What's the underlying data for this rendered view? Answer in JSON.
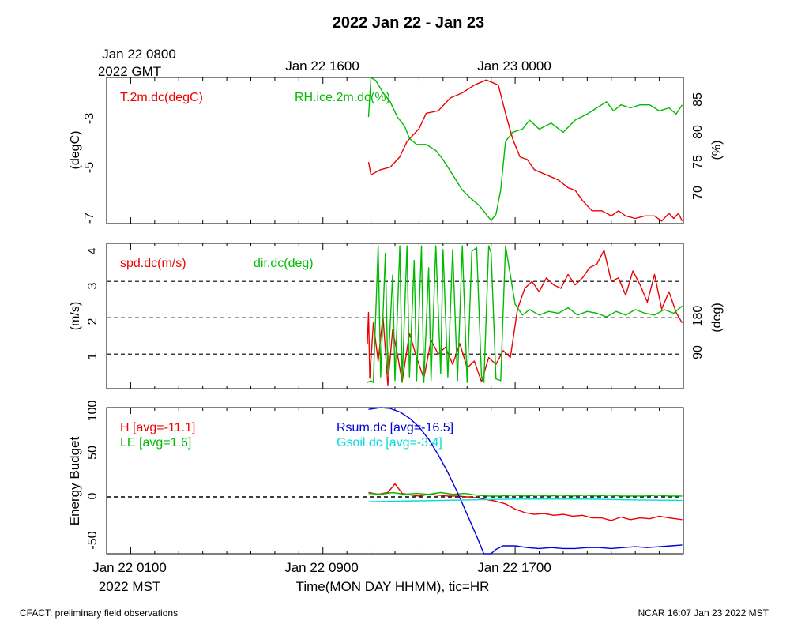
{
  "title": "2022 Jan 22 - Jan 23",
  "top_axis": {
    "gmt_label_line1": "Jan 22 0800",
    "gmt_label_line2": "2022 GMT",
    "ticks": [
      "Jan 22 1600",
      "Jan 23 0000"
    ]
  },
  "bottom_axis": {
    "ticks": [
      "Jan 22 0100",
      "Jan 22 0900",
      "Jan 22 1700"
    ],
    "mst_label": "2022 MST",
    "xlabel": "Time(MON DAY HHMM), tic=HR"
  },
  "footer": {
    "left": "CFACT: preliminary field observations",
    "right": "NCAR 16:07 Jan 23 2022 MST"
  },
  "colors": {
    "red": "#ee0000",
    "green": "#00bb00",
    "blue": "#0000dd",
    "cyan": "#00dddd",
    "black": "#000000"
  },
  "chart_data": [
    {
      "type": "line",
      "panel": "temperature-humidity",
      "x_range_hours_mst": [
        0,
        24
      ],
      "ylabel_left": "(degC)",
      "ylabel_right": "(%)",
      "ylim_left": [
        -7.1,
        -1.4
      ],
      "ylim_right": [
        65.5,
        89.5
      ],
      "yticks_left": [
        "-3",
        "-5",
        "-7"
      ],
      "yticks_right": [
        "85",
        "80",
        "75",
        "70"
      ],
      "series": [
        {
          "name": "T.2m.dc(degC)",
          "axis": "left",
          "color": "#ee0000",
          "x": [
            10.9,
            11.0,
            11.4,
            11.8,
            12.2,
            12.5,
            13.0,
            13.3,
            13.8,
            14.3,
            14.8,
            15.3,
            15.8,
            16.3,
            16.6,
            16.9,
            17.2,
            17.5,
            17.8,
            18.3,
            18.8,
            19.2,
            19.5,
            19.8,
            20.2,
            20.6,
            21.0,
            21.3,
            21.6,
            22.0,
            22.4,
            22.8,
            23.1,
            23.4,
            23.6,
            23.8,
            23.95
          ],
          "y": [
            -4.7,
            -5.2,
            -5.0,
            -4.9,
            -4.5,
            -3.9,
            -3.4,
            -2.8,
            -2.7,
            -2.2,
            -2.0,
            -1.7,
            -1.5,
            -1.7,
            -2.8,
            -3.8,
            -4.5,
            -4.6,
            -5.0,
            -5.2,
            -5.4,
            -5.7,
            -5.8,
            -6.2,
            -6.6,
            -6.6,
            -6.8,
            -6.6,
            -6.8,
            -6.9,
            -6.8,
            -6.8,
            -7.0,
            -6.7,
            -6.9,
            -6.7,
            -7.0
          ]
        },
        {
          "name": "RH.ice.2m.dc(%)",
          "axis": "left_label_right_axis",
          "color": "#00bb00",
          "x": [
            10.9,
            11.0,
            11.2,
            11.5,
            11.8,
            12.1,
            12.4,
            12.6,
            12.9,
            13.3,
            13.7,
            14.0,
            14.4,
            14.8,
            15.2,
            15.5,
            15.8,
            16.0,
            16.2,
            16.4,
            16.6,
            16.9,
            17.3,
            17.6,
            18.0,
            18.5,
            19.0,
            19.5,
            20.0,
            20.4,
            20.8,
            21.1,
            21.4,
            21.8,
            22.2,
            22.6,
            23.0,
            23.4,
            23.7,
            23.95
          ],
          "y": [
            83.0,
            89.5,
            89.0,
            87.0,
            85.5,
            83.0,
            81.5,
            79.5,
            78.5,
            78.5,
            77.5,
            76.0,
            73.5,
            71.0,
            69.5,
            68.5,
            67.0,
            66.0,
            67.0,
            71.0,
            79.0,
            80.5,
            81.0,
            82.5,
            81.0,
            82.0,
            80.5,
            82.5,
            83.5,
            84.5,
            85.5,
            84.0,
            85.0,
            84.5,
            85.0,
            85.0,
            84.0,
            84.5,
            83.5,
            85.0
          ]
        }
      ]
    },
    {
      "type": "line",
      "panel": "wind",
      "x_range_hours_mst": [
        0,
        24
      ],
      "ylabel_left": "(m/s)",
      "ylabel_right": "(deg)",
      "ylim_left": [
        0.1,
        4.3
      ],
      "ylim_right": [
        -12,
        387
      ],
      "yticks_left": [
        "4",
        "3",
        "2",
        "1"
      ],
      "yticks_right": [
        "180",
        "90"
      ],
      "reference_lines_ms": [
        1.1,
        2.15,
        3.2
      ],
      "series": [
        {
          "name": "spd.dc(m/s)",
          "axis": "left",
          "color": "#ee0000",
          "x": [
            10.85,
            10.9,
            10.95,
            11.1,
            11.3,
            11.5,
            11.7,
            11.9,
            12.1,
            12.3,
            12.6,
            12.9,
            13.2,
            13.5,
            13.8,
            14.1,
            14.4,
            14.7,
            15.0,
            15.3,
            15.6,
            15.9,
            16.2,
            16.5,
            16.8,
            17.1,
            17.4,
            17.7,
            18.0,
            18.3,
            18.6,
            18.9,
            19.2,
            19.5,
            19.8,
            20.1,
            20.4,
            20.7,
            21.0,
            21.3,
            21.6,
            21.9,
            22.2,
            22.5,
            22.8,
            23.1,
            23.4,
            23.7,
            23.95
          ],
          "y": [
            1.4,
            2.3,
            0.4,
            2.0,
            0.9,
            2.2,
            0.2,
            1.8,
            1.1,
            0.3,
            1.7,
            1.0,
            0.4,
            1.5,
            1.1,
            1.3,
            0.8,
            1.4,
            0.7,
            0.9,
            0.3,
            1.0,
            0.8,
            1.2,
            1.0,
            2.4,
            3.0,
            3.2,
            2.9,
            3.3,
            3.1,
            3.0,
            3.4,
            3.1,
            3.3,
            3.6,
            3.7,
            4.1,
            3.2,
            3.3,
            2.8,
            3.5,
            3.1,
            2.6,
            3.4,
            2.4,
            2.9,
            2.3,
            2.0
          ]
        },
        {
          "name": "dir.dc(deg)",
          "axis": "right",
          "color": "#00bb00",
          "x": [
            10.85,
            11.0,
            11.1,
            11.3,
            11.4,
            11.6,
            11.7,
            11.9,
            12.0,
            12.2,
            12.3,
            12.5,
            12.6,
            12.8,
            12.9,
            13.1,
            13.2,
            13.4,
            13.5,
            13.7,
            13.9,
            14.0,
            14.2,
            14.4,
            14.6,
            14.8,
            15.0,
            15.2,
            15.4,
            15.6,
            15.7,
            15.9,
            16.0,
            16.2,
            16.4,
            16.6,
            16.8,
            17.0,
            17.3,
            17.6,
            18.0,
            18.4,
            18.8,
            19.2,
            19.6,
            20.0,
            20.4,
            20.8,
            21.2,
            21.6,
            22.0,
            22.4,
            22.8,
            23.2,
            23.6,
            23.95
          ],
          "y": [
            5,
            10,
            5,
            380,
            20,
            360,
            30,
            300,
            10,
            380,
            5,
            380,
            20,
            340,
            10,
            380,
            5,
            320,
            10,
            380,
            30,
            370,
            20,
            370,
            10,
            380,
            5,
            365,
            375,
            20,
            5,
            380,
            360,
            15,
            10,
            380,
            300,
            220,
            190,
            205,
            190,
            200,
            195,
            210,
            190,
            200,
            195,
            185,
            200,
            190,
            205,
            195,
            190,
            205,
            195,
            215
          ]
        }
      ]
    },
    {
      "type": "line",
      "panel": "energy-budget",
      "x_range_hours_mst": [
        0,
        24
      ],
      "ylabel": "Energy Budget",
      "ylim": [
        -65,
        102
      ],
      "yticks": [
        "100",
        "50",
        "0",
        "-50"
      ],
      "reference_lines": [
        0
      ],
      "series": [
        {
          "name": "H [avg=-11.1]",
          "color": "#ee0000",
          "x": [
            10.9,
            11.3,
            11.7,
            12.0,
            12.3,
            12.7,
            13.0,
            13.4,
            13.8,
            14.2,
            14.6,
            15.0,
            15.4,
            15.8,
            16.2,
            16.6,
            17.0,
            17.4,
            17.8,
            18.2,
            18.6,
            19.0,
            19.4,
            19.8,
            20.2,
            20.6,
            21.0,
            21.4,
            21.8,
            22.2,
            22.6,
            23.0,
            23.4,
            23.95
          ],
          "y": [
            5,
            3,
            5,
            15,
            4,
            2,
            1,
            3,
            2,
            1,
            1,
            0,
            -1,
            -3,
            -5,
            -8,
            -14,
            -18,
            -20,
            -19,
            -21,
            -20,
            -22,
            -21,
            -24,
            -24,
            -27,
            -23,
            -26,
            -24,
            -25,
            -22,
            -24,
            -26
          ]
        },
        {
          "name": "LE [avg=1.6]",
          "color": "#00bb00",
          "x": [
            10.9,
            11.4,
            11.9,
            12.4,
            12.9,
            13.4,
            13.9,
            14.4,
            14.9,
            15.4,
            15.9,
            16.4,
            16.9,
            17.4,
            17.9,
            18.4,
            18.9,
            19.4,
            19.9,
            20.4,
            20.9,
            21.4,
            21.9,
            22.4,
            22.9,
            23.4,
            23.95
          ],
          "y": [
            4,
            3,
            5,
            3,
            4,
            3,
            5,
            3,
            4,
            2,
            1,
            1,
            2,
            1,
            2,
            1,
            2,
            1,
            2,
            1,
            2,
            1,
            1,
            1,
            2,
            1,
            1
          ]
        },
        {
          "name": "Rsum.dc [avg=-16.5]",
          "color": "#0000dd",
          "x": [
            10.9,
            11.4,
            11.8,
            12.2,
            12.6,
            13.0,
            13.4,
            13.8,
            14.2,
            14.6,
            15.0,
            15.4,
            15.7,
            16.0,
            16.2,
            16.5,
            17.0,
            17.5,
            18.0,
            18.5,
            19.0,
            19.5,
            20.0,
            20.5,
            21.0,
            21.5,
            22.0,
            22.5,
            23.0,
            23.5,
            23.95
          ],
          "y": [
            100,
            102,
            101,
            97,
            90,
            80,
            66,
            48,
            28,
            5,
            -20,
            -45,
            -65,
            -68,
            -60,
            -56,
            -56,
            -58,
            -59,
            -58,
            -59,
            -59,
            -58,
            -58,
            -59,
            -58,
            -57,
            -58,
            -57,
            -56,
            -55
          ]
        },
        {
          "name": "Gsoil.dc [avg=-3.4]",
          "color": "#00dddd",
          "x": [
            10.9,
            12.0,
            13.0,
            14.0,
            15.0,
            16.0,
            17.0,
            18.0,
            19.0,
            20.0,
            21.0,
            22.0,
            23.0,
            23.95
          ],
          "y": [
            -5.5,
            -5.0,
            -4.5,
            -4.0,
            -3.5,
            -3.0,
            -2.5,
            -2.5,
            -2.5,
            -2.5,
            -3.0,
            -3.5,
            -3.8,
            -4.0
          ]
        }
      ]
    }
  ]
}
